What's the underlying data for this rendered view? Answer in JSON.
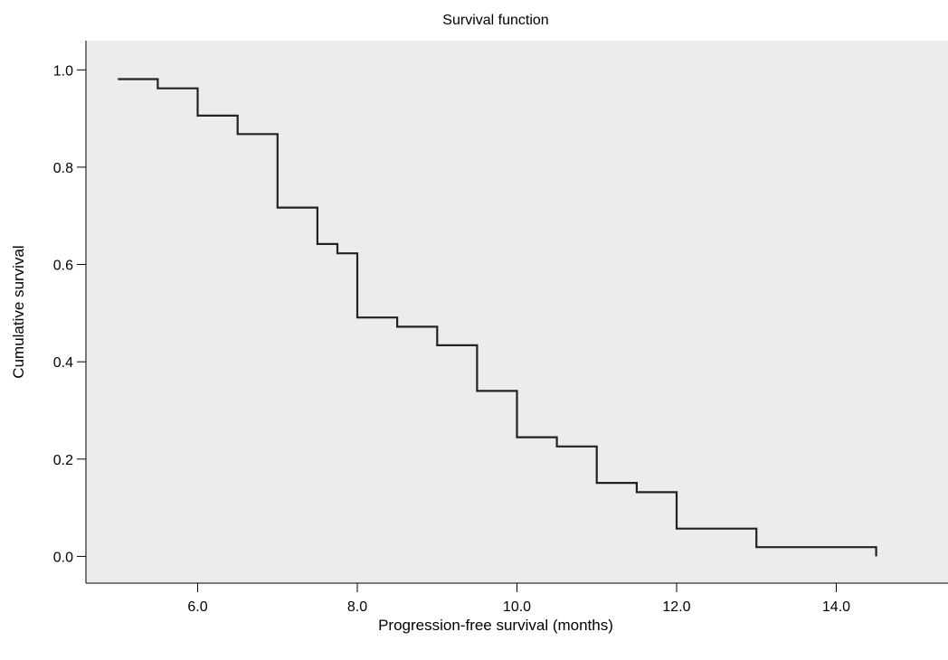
{
  "chart_data": {
    "type": "line",
    "step": true,
    "title": "Survival function",
    "xlabel": "Progression-free survival (months)",
    "ylabel": "Cumulative survival",
    "xlim": [
      4.6,
      15.4
    ],
    "ylim": [
      -0.055,
      1.06
    ],
    "xticks": [
      6.0,
      8.0,
      10.0,
      12.0,
      14.0
    ],
    "xtick_labels": [
      "6.0",
      "8.0",
      "10.0",
      "12.0",
      "14.0"
    ],
    "yticks": [
      0.0,
      0.2,
      0.4,
      0.6,
      0.8,
      1.0
    ],
    "ytick_labels": [
      "0.0",
      "0.2",
      "0.4",
      "0.6",
      "0.8",
      "1.0"
    ],
    "grid": false,
    "colors": {
      "plot_background": "#ececec",
      "line": "#222222",
      "axis": "#000000"
    },
    "series": [
      {
        "x": [
          5.0,
          5.5,
          6.0,
          6.5,
          7.0,
          7.5,
          7.75,
          8.0,
          8.5,
          9.0,
          9.5,
          10.0,
          10.5,
          11.0,
          11.5,
          12.0,
          13.0,
          14.5
        ],
        "y": [
          0.981,
          0.962,
          0.906,
          0.868,
          0.717,
          0.642,
          0.623,
          0.491,
          0.472,
          0.434,
          0.34,
          0.245,
          0.226,
          0.151,
          0.132,
          0.057,
          0.019,
          0.0
        ]
      }
    ]
  }
}
